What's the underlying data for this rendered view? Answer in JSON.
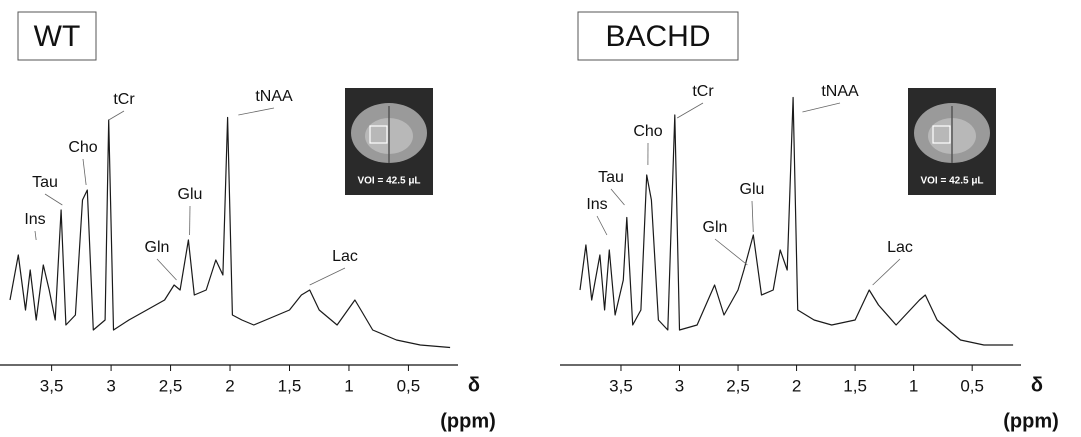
{
  "chart_data": [
    {
      "type": "line",
      "title": "WT",
      "xlabel": "δ",
      "xlabel_unit": "(ppm)",
      "inset_label": "VOI = 42.5 μL",
      "xlim": [
        3.85,
        0.1
      ],
      "ylim": [
        0,
        110
      ],
      "xticks": [
        {
          "value": 3.5,
          "label": "3,5"
        },
        3,
        {
          "value": 2.5,
          "label": "2,5"
        },
        2,
        {
          "value": 1.5,
          "label": "1,5"
        },
        1,
        {
          "value": 0.5,
          "label": "0,5"
        }
      ],
      "x": [
        3.85,
        3.78,
        3.72,
        3.68,
        3.63,
        3.57,
        3.52,
        3.47,
        3.42,
        3.38,
        3.3,
        3.24,
        3.2,
        3.15,
        3.05,
        3.02,
        2.98,
        2.85,
        2.7,
        2.55,
        2.47,
        2.42,
        2.35,
        2.3,
        2.2,
        2.12,
        2.06,
        2.02,
        1.98,
        1.9,
        1.8,
        1.7,
        1.5,
        1.4,
        1.33,
        1.25,
        1.1,
        0.95,
        0.9,
        0.8,
        0.6,
        0.4,
        0.15
      ],
      "series": [
        {
          "color": "#1a1a1a",
          "values": [
            24,
            42,
            20,
            36,
            16,
            38,
            28,
            16,
            60,
            14,
            18,
            64,
            68,
            12,
            16,
            96,
            12,
            16,
            20,
            24,
            30,
            28,
            48,
            26,
            28,
            40,
            34,
            97,
            18,
            16,
            14,
            16,
            20,
            26,
            28,
            20,
            14,
            24,
            20,
            12,
            8,
            6,
            5
          ]
        }
      ],
      "annotations": [
        {
          "text": "Ins",
          "x": 3.63
        },
        {
          "text": "Tau",
          "x": 3.41
        },
        {
          "text": "Cho",
          "x": 3.21
        },
        {
          "text": "tCr",
          "x": 3.02
        },
        {
          "text": "Gln",
          "x": 2.45
        },
        {
          "text": "Glu",
          "x": 2.34
        },
        {
          "text": "tNAA",
          "x": 1.93
        },
        {
          "text": "Lac",
          "x": 1.33
        }
      ]
    },
    {
      "type": "line",
      "title": "BACHD",
      "xlabel": "δ",
      "xlabel_unit": "(ppm)",
      "inset_label": "VOI = 42.5 μL",
      "xlim": [
        3.85,
        0.1
      ],
      "ylim": [
        0,
        110
      ],
      "xticks": [
        {
          "value": 3.5,
          "label": "3,5"
        },
        3,
        {
          "value": 2.5,
          "label": "2,5"
        },
        2,
        {
          "value": 1.5,
          "label": "1,5"
        },
        1,
        {
          "value": 0.5,
          "label": "0,5"
        }
      ],
      "x": [
        3.85,
        3.8,
        3.75,
        3.68,
        3.64,
        3.6,
        3.55,
        3.48,
        3.45,
        3.4,
        3.33,
        3.28,
        3.24,
        3.18,
        3.1,
        3.04,
        3.0,
        2.85,
        2.7,
        2.62,
        2.5,
        2.45,
        2.37,
        2.3,
        2.2,
        2.14,
        2.08,
        2.03,
        1.99,
        1.85,
        1.7,
        1.5,
        1.38,
        1.3,
        1.15,
        0.95,
        0.9,
        0.8,
        0.6,
        0.4,
        0.15
      ],
      "series": [
        {
          "color": "#1a1a1a",
          "values": [
            28,
            46,
            24,
            42,
            20,
            44,
            18,
            32,
            57,
            14,
            20,
            74,
            64,
            16,
            12,
            98,
            12,
            14,
            30,
            18,
            28,
            36,
            50,
            26,
            28,
            44,
            36,
            105,
            20,
            16,
            14,
            16,
            28,
            22,
            14,
            24,
            26,
            16,
            8,
            6,
            6
          ]
        }
      ],
      "annotations": [
        {
          "text": "Ins",
          "x": 3.62
        },
        {
          "text": "Tau",
          "x": 3.47
        },
        {
          "text": "Cho",
          "x": 3.27
        },
        {
          "text": "tCr",
          "x": 3.02
        },
        {
          "text": "Gln",
          "x": 2.42
        },
        {
          "text": "Glu",
          "x": 2.37
        },
        {
          "text": "tNAA",
          "x": 1.95
        },
        {
          "text": "Lac",
          "x": 1.35
        }
      ]
    }
  ]
}
